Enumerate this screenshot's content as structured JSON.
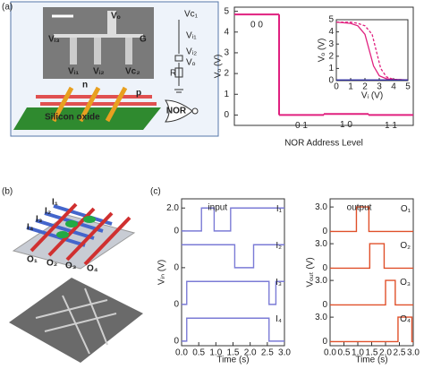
{
  "panel_labels": [
    "(a)",
    "(b)",
    "(c)"
  ],
  "schematic": {
    "sem_labels": [
      "Vₒ",
      "Vᵢ₃",
      "G",
      "Vᵢ₁",
      "Vᵢ₂",
      "Vc₂"
    ],
    "circuit_labels": [
      "Vc₁",
      "Vᵢ₁",
      "Vᵢ₂",
      "Vₒ",
      "R"
    ],
    "device_labels": [
      "n",
      "p",
      "Silicon oxide"
    ],
    "gate_label": "NOR"
  },
  "crossbar_labels": [
    "I₁",
    "I₂",
    "I₃",
    "I₄",
    "O₁",
    "O₂",
    "O₃",
    "O₄"
  ],
  "chart_data": [
    {
      "type": "step",
      "x_label": "NOR Address Level",
      "y_label": "Vₒ (V)",
      "categories": [
        "0 0",
        "0 1",
        "1 0",
        "1 1"
      ],
      "values": [
        4.85,
        0,
        0.05,
        0
      ],
      "color": "#e0207f",
      "ylim": [
        -0.5,
        5.2
      ],
      "yticks": [
        0,
        1,
        2,
        3,
        4,
        5
      ]
    },
    {
      "type": "line",
      "x_label": "Vᵢ (V)",
      "y_label": "Vₒ (V)",
      "xlim": [
        0,
        5
      ],
      "ylim": [
        0,
        5
      ],
      "xticks": [
        0,
        1,
        2,
        3,
        4,
        5
      ],
      "yticks": [
        0,
        1,
        2,
        3,
        4,
        5
      ],
      "series": [
        {
          "color": "#e0207f",
          "x": [
            0,
            1,
            1.5,
            2,
            2.3,
            2.6,
            3,
            3.5,
            4,
            5
          ],
          "values": [
            4.8,
            4.7,
            4.5,
            3.8,
            2.5,
            1.2,
            0.4,
            0.15,
            0.1,
            0.05
          ]
        },
        {
          "color": "#e0207f",
          "dash": true,
          "x": [
            0,
            1,
            1.5,
            2,
            2.5,
            2.8,
            3.1,
            3.5,
            4,
            5
          ],
          "values": [
            4.8,
            4.8,
            4.7,
            4.5,
            3.8,
            2.4,
            1.0,
            0.3,
            0.1,
            0.05
          ]
        },
        {
          "color": "#2a2a9a",
          "x": [
            0,
            5
          ],
          "values": [
            0.05,
            0.05
          ]
        }
      ]
    },
    {
      "type": "traces",
      "title": "input",
      "title_color": "#5555cc",
      "x_label": "Time (s)",
      "y_label": "Vᵢₙ (V)",
      "xlim": [
        0,
        3
      ],
      "xticks": [
        {
          "value": 0,
          "label": "0.0"
        },
        {
          "value": 0.5,
          "label": "0.5"
        },
        {
          "value": 1,
          "label": "1.0"
        },
        {
          "value": 1.5,
          "label": "1.5"
        },
        {
          "value": 2,
          "label": "2.0"
        },
        {
          "value": 2.5,
          "label": "2.5"
        },
        {
          "value": 3,
          "label": "3.0"
        }
      ],
      "series": [
        {
          "name": "I₁",
          "color": "#7b7bd6",
          "ylim": [
            -0.4,
            2.8
          ],
          "yticks": [
            0,
            {
              "value": 2,
              "label": "2.0"
            }
          ],
          "x": [
            0,
            0.58,
            0.58,
            0.95,
            0.95,
            1.43,
            1.43,
            3
          ],
          "values": [
            0,
            0,
            2,
            2,
            0,
            0,
            2,
            2
          ]
        },
        {
          "name": "I₂",
          "color": "#7b7bd6",
          "ylim": [
            -0.4,
            2.8
          ],
          "yticks": [
            0
          ],
          "x": [
            0,
            1.55,
            1.55,
            2.1,
            2.1,
            3
          ],
          "values": [
            2,
            2,
            0,
            0,
            2,
            2
          ]
        },
        {
          "name": "I₃",
          "color": "#7b7bd6",
          "ylim": [
            -0.4,
            2.8
          ],
          "yticks": [
            0
          ],
          "x": [
            0,
            0.15,
            0.15,
            2.55,
            2.55,
            2.75,
            2.75,
            3
          ],
          "values": [
            0,
            0,
            2,
            2,
            0,
            0,
            2,
            2
          ]
        },
        {
          "name": "I₄",
          "color": "#7b7bd6",
          "ylim": [
            -0.4,
            2.8
          ],
          "yticks": [
            0
          ],
          "x": [
            0,
            0.15,
            0.15,
            2.55,
            2.55,
            3
          ],
          "values": [
            0,
            0,
            2,
            2,
            0,
            0
          ]
        }
      ]
    },
    {
      "type": "traces",
      "title": "output",
      "title_color": "#e0502a",
      "x_label": "Time (s)",
      "y_label": "Vₒᵤₜ (V)",
      "xlim": [
        0,
        3
      ],
      "xticks": [
        {
          "value": 0,
          "label": "0.0"
        },
        {
          "value": 0.5,
          "label": "0.5"
        },
        {
          "value": 1,
          "label": "1.0"
        },
        {
          "value": 1.5,
          "label": "1.5"
        },
        {
          "value": 2,
          "label": "2.0"
        },
        {
          "value": 2.5,
          "label": "2.5"
        },
        {
          "value": 3,
          "label": "3.0"
        }
      ],
      "series": [
        {
          "name": "O₁",
          "color": "#e0502a",
          "ylim": [
            -0.5,
            4
          ],
          "yticks": [
            0,
            {
              "value": 3,
              "label": "3.0"
            }
          ],
          "x": [
            0,
            0.95,
            0.95,
            1.4,
            1.4,
            3
          ],
          "values": [
            0,
            0,
            3,
            3,
            0,
            0
          ]
        },
        {
          "name": "O₂",
          "color": "#e0502a",
          "ylim": [
            -0.5,
            4
          ],
          "yticks": [
            0,
            {
              "value": 3,
              "label": "3.0"
            }
          ],
          "x": [
            0,
            1.43,
            1.43,
            1.95,
            1.95,
            3
          ],
          "values": [
            0,
            0,
            3,
            3,
            0,
            0
          ]
        },
        {
          "name": "O₃",
          "color": "#e0502a",
          "ylim": [
            -0.5,
            4
          ],
          "yticks": [
            0,
            {
              "value": 3,
              "label": "3.0"
            }
          ],
          "x": [
            0,
            2.0,
            2.0,
            2.35,
            2.35,
            3
          ],
          "values": [
            0,
            0,
            3,
            3,
            0,
            0
          ]
        },
        {
          "name": "O₄",
          "color": "#e0502a",
          "ylim": [
            -0.5,
            4
          ],
          "yticks": [
            0,
            {
              "value": 3,
              "label": "3.0"
            }
          ],
          "x": [
            0,
            2.45,
            2.45,
            2.95,
            2.95,
            3
          ],
          "values": [
            0,
            0,
            3,
            3,
            0,
            0
          ]
        }
      ]
    }
  ]
}
